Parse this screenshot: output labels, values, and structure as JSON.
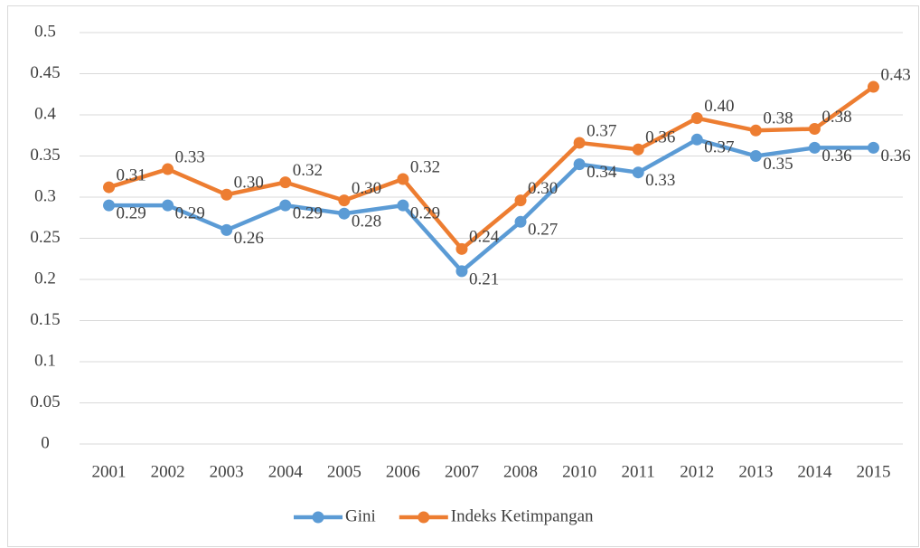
{
  "chart_data": {
    "type": "line",
    "categories": [
      "2001",
      "2002",
      "2003",
      "2004",
      "2005",
      "2006",
      "2007",
      "2008",
      "2010",
      "2011",
      "2012",
      "2013",
      "2014",
      "2015"
    ],
    "series": [
      {
        "name": "Gini",
        "color": "#5b9bd5",
        "values": [
          0.29,
          0.29,
          0.26,
          0.29,
          0.28,
          0.29,
          0.21,
          0.27,
          0.34,
          0.33,
          0.37,
          0.35,
          0.36,
          0.36
        ]
      },
      {
        "name": "Indeks Ketimpangan",
        "color": "#ed7d31",
        "values": [
          0.312,
          0.334,
          0.303,
          0.318,
          0.296,
          0.322,
          0.237,
          0.296,
          0.366,
          0.358,
          0.396,
          0.381,
          0.383,
          0.434
        ],
        "value_labels": [
          "0.31",
          "0.33",
          "0.30",
          "0.32",
          "0.30",
          "0.32",
          "0.24",
          "0.30",
          "0.37",
          "0.36",
          "0.40",
          "0.38",
          "0.38",
          "0.43"
        ]
      }
    ],
    "ylim": [
      0,
      0.5
    ],
    "yticks": [
      0,
      0.05,
      0.1,
      0.15,
      0.2,
      0.25,
      0.3,
      0.35,
      0.4,
      0.45,
      0.5
    ],
    "grid": true,
    "legend": "bottom"
  }
}
